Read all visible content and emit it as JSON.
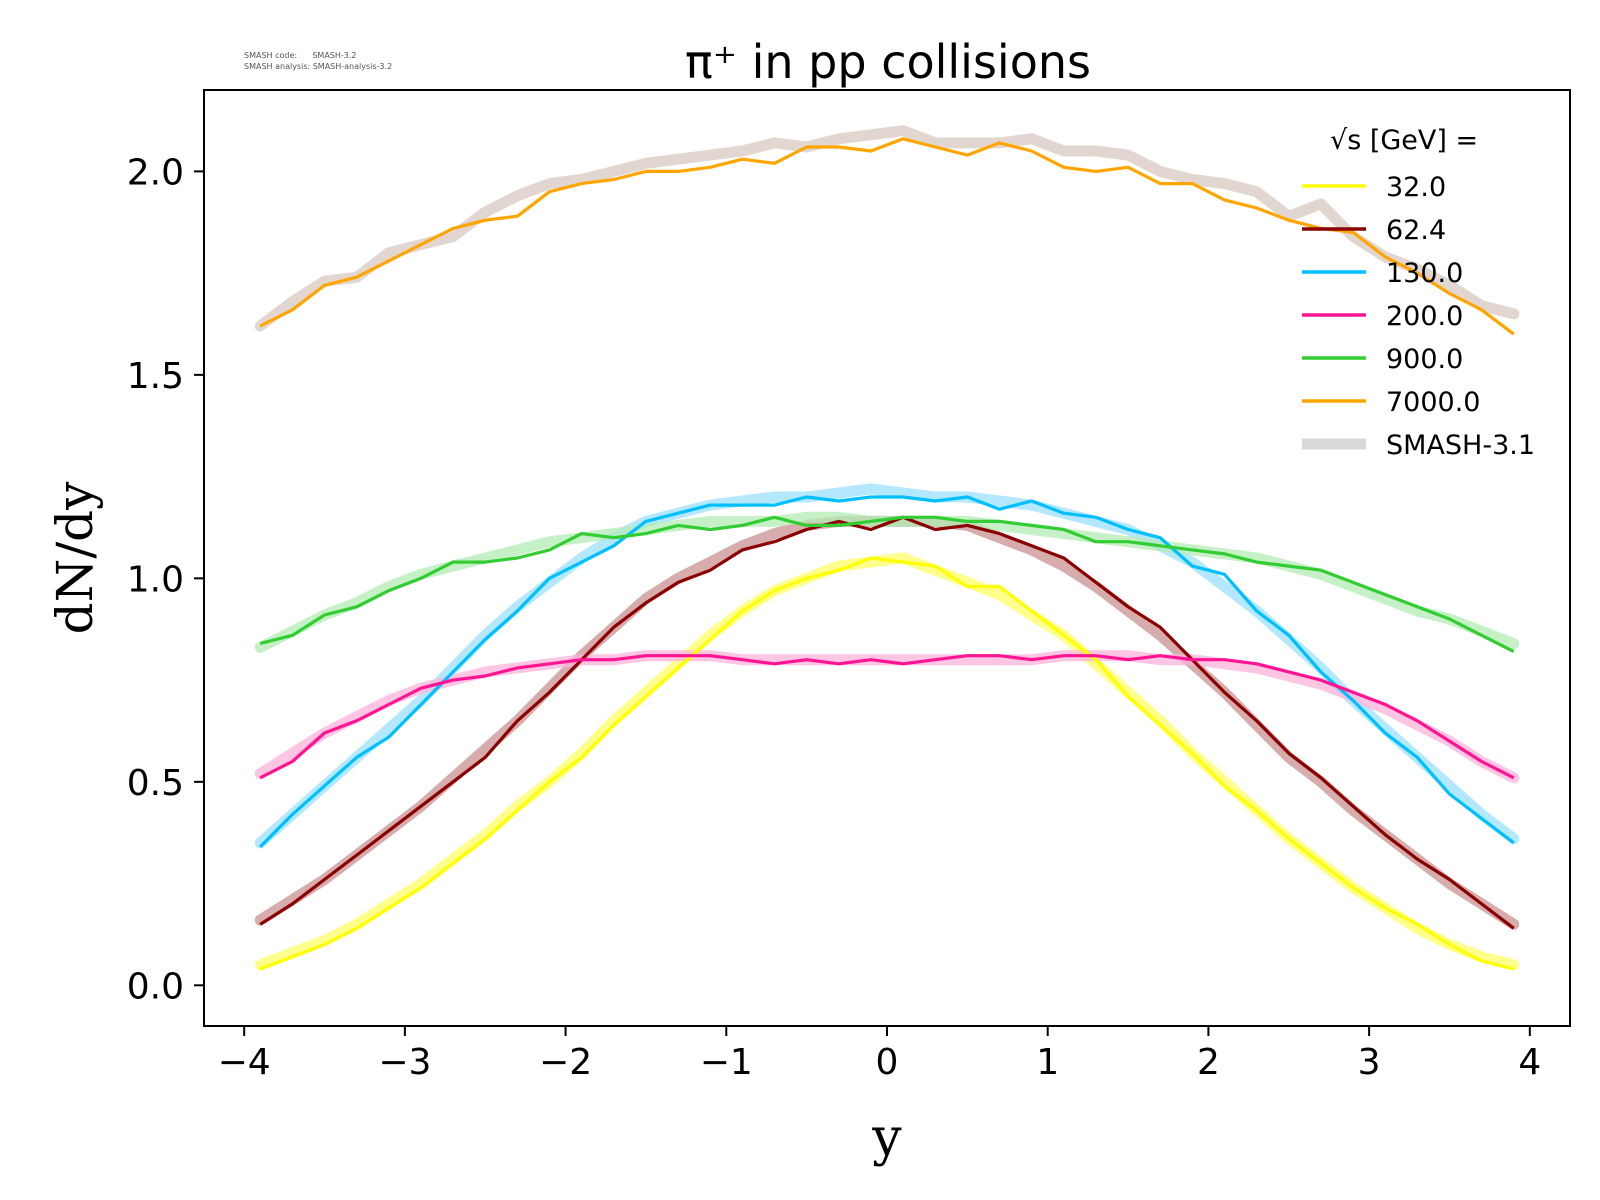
{
  "meta": {
    "line1": "SMASH code:      SMASH-3.2",
    "line2": "SMASH analysis: SMASH-analysis-3.2"
  },
  "chart_data": {
    "type": "line",
    "title": "π⁺ in pp collisions",
    "xlabel": "y",
    "ylabel": "dN/dy",
    "xlim": [
      -4.25,
      4.25
    ],
    "ylim": [
      -0.1,
      2.2
    ],
    "xticks": [
      -4,
      -3,
      -2,
      -1,
      0,
      1,
      2,
      3,
      4
    ],
    "xtick_labels": [
      "−4",
      "−3",
      "−2",
      "−1",
      "0",
      "1",
      "2",
      "3",
      "4"
    ],
    "yticks": [
      0.0,
      0.5,
      1.0,
      1.5,
      2.0
    ],
    "ytick_labels": [
      "0.0",
      "0.5",
      "1.0",
      "1.5",
      "2.0"
    ],
    "grid": false,
    "legend_placement": "top-right",
    "legend_title": "√s  [GeV] =",
    "x": [
      -3.9,
      -3.7,
      -3.5,
      -3.3,
      -3.1,
      -2.9,
      -2.7,
      -2.5,
      -2.3,
      -2.1,
      -1.9,
      -1.7,
      -1.5,
      -1.3,
      -1.1,
      -0.9,
      -0.7,
      -0.5,
      -0.3,
      -0.1,
      0.1,
      0.3,
      0.5,
      0.7,
      0.9,
      1.1,
      1.3,
      1.5,
      1.7,
      1.9,
      2.1,
      2.3,
      2.5,
      2.7,
      2.9,
      3.1,
      3.3,
      3.5,
      3.7,
      3.9
    ],
    "series": [
      {
        "name": "32.0",
        "color": "#ffff00",
        "values": [
          0.04,
          0.07,
          0.1,
          0.14,
          0.19,
          0.24,
          0.3,
          0.36,
          0.43,
          0.5,
          0.56,
          0.64,
          0.71,
          0.78,
          0.85,
          0.92,
          0.97,
          1.0,
          1.02,
          1.05,
          1.04,
          1.03,
          0.98,
          0.98,
          0.92,
          0.86,
          0.8,
          0.71,
          0.64,
          0.57,
          0.49,
          0.43,
          0.36,
          0.3,
          0.24,
          0.19,
          0.15,
          0.1,
          0.06,
          0.04
        ]
      },
      {
        "name": "62.4",
        "color": "#8b0000",
        "values": [
          0.15,
          0.2,
          0.26,
          0.32,
          0.38,
          0.44,
          0.5,
          0.56,
          0.65,
          0.72,
          0.8,
          0.88,
          0.94,
          0.99,
          1.02,
          1.07,
          1.09,
          1.12,
          1.14,
          1.12,
          1.15,
          1.12,
          1.13,
          1.11,
          1.08,
          1.05,
          0.99,
          0.93,
          0.88,
          0.8,
          0.72,
          0.65,
          0.57,
          0.51,
          0.44,
          0.37,
          0.31,
          0.26,
          0.2,
          0.14
        ]
      },
      {
        "name": "130.0",
        "color": "#00bfff",
        "values": [
          0.34,
          0.42,
          0.49,
          0.56,
          0.61,
          0.69,
          0.77,
          0.85,
          0.92,
          1.0,
          1.04,
          1.08,
          1.14,
          1.16,
          1.18,
          1.18,
          1.18,
          1.2,
          1.19,
          1.2,
          1.2,
          1.19,
          1.2,
          1.17,
          1.19,
          1.16,
          1.15,
          1.12,
          1.1,
          1.03,
          1.01,
          0.92,
          0.86,
          0.77,
          0.7,
          0.62,
          0.56,
          0.47,
          0.41,
          0.35
        ]
      },
      {
        "name": "200.0",
        "color": "#ff1493",
        "values": [
          0.51,
          0.55,
          0.62,
          0.65,
          0.69,
          0.73,
          0.75,
          0.76,
          0.78,
          0.79,
          0.8,
          0.8,
          0.81,
          0.81,
          0.81,
          0.8,
          0.79,
          0.8,
          0.79,
          0.8,
          0.79,
          0.8,
          0.81,
          0.81,
          0.8,
          0.81,
          0.81,
          0.8,
          0.81,
          0.8,
          0.8,
          0.79,
          0.77,
          0.75,
          0.72,
          0.69,
          0.65,
          0.6,
          0.55,
          0.51
        ]
      },
      {
        "name": "900.0",
        "color": "#32cd32",
        "values": [
          0.84,
          0.86,
          0.91,
          0.93,
          0.97,
          1.0,
          1.04,
          1.04,
          1.05,
          1.07,
          1.11,
          1.1,
          1.11,
          1.13,
          1.12,
          1.13,
          1.15,
          1.13,
          1.13,
          1.14,
          1.15,
          1.15,
          1.14,
          1.14,
          1.13,
          1.12,
          1.09,
          1.09,
          1.08,
          1.07,
          1.06,
          1.04,
          1.03,
          1.02,
          0.99,
          0.96,
          0.93,
          0.9,
          0.86,
          0.82
        ]
      },
      {
        "name": "7000.0",
        "color": "#ffa500",
        "values": [
          1.62,
          1.66,
          1.72,
          1.74,
          1.78,
          1.82,
          1.86,
          1.88,
          1.89,
          1.95,
          1.97,
          1.98,
          2.0,
          2.0,
          2.01,
          2.03,
          2.02,
          2.06,
          2.06,
          2.05,
          2.08,
          2.06,
          2.04,
          2.07,
          2.05,
          2.01,
          2.0,
          2.01,
          1.97,
          1.97,
          1.93,
          1.91,
          1.88,
          1.86,
          1.85,
          1.79,
          1.75,
          1.7,
          1.66,
          1.6
        ]
      },
      {
        "name": "SMASH-3.1",
        "color": "#d9d9d9"
      }
    ],
    "reference_band": {
      "name": "SMASH-3.1",
      "color": "#d3d3d3",
      "series": [
        {
          "values": [
            0.05,
            0.08,
            0.11,
            0.15,
            0.2,
            0.25,
            0.31,
            0.37,
            0.44,
            0.5,
            0.57,
            0.65,
            0.72,
            0.79,
            0.86,
            0.92,
            0.97,
            1.0,
            1.03,
            1.04,
            1.05,
            1.02,
            0.99,
            0.96,
            0.91,
            0.86,
            0.79,
            0.72,
            0.65,
            0.57,
            0.5,
            0.43,
            0.36,
            0.3,
            0.24,
            0.19,
            0.14,
            0.1,
            0.07,
            0.05
          ],
          "color": "#ffff66"
        },
        {
          "values": [
            0.16,
            0.21,
            0.26,
            0.32,
            0.38,
            0.44,
            0.51,
            0.58,
            0.65,
            0.73,
            0.81,
            0.88,
            0.95,
            1.0,
            1.04,
            1.08,
            1.11,
            1.13,
            1.14,
            1.14,
            1.14,
            1.14,
            1.13,
            1.1,
            1.07,
            1.03,
            0.98,
            0.92,
            0.86,
            0.79,
            0.72,
            0.64,
            0.56,
            0.5,
            0.43,
            0.37,
            0.31,
            0.25,
            0.2,
            0.15
          ],
          "color": "#c89090"
        },
        {
          "values": [
            0.35,
            0.42,
            0.49,
            0.56,
            0.63,
            0.7,
            0.78,
            0.86,
            0.93,
            0.99,
            1.05,
            1.1,
            1.14,
            1.16,
            1.18,
            1.19,
            1.2,
            1.2,
            1.21,
            1.22,
            1.21,
            1.2,
            1.2,
            1.19,
            1.18,
            1.16,
            1.14,
            1.12,
            1.08,
            1.04,
            0.98,
            0.92,
            0.85,
            0.78,
            0.7,
            0.63,
            0.56,
            0.49,
            0.42,
            0.36
          ],
          "color": "#99e0ff"
        },
        {
          "values": [
            0.52,
            0.57,
            0.62,
            0.66,
            0.7,
            0.73,
            0.75,
            0.77,
            0.78,
            0.79,
            0.8,
            0.8,
            0.81,
            0.81,
            0.81,
            0.8,
            0.8,
            0.8,
            0.8,
            0.8,
            0.8,
            0.8,
            0.8,
            0.8,
            0.8,
            0.81,
            0.81,
            0.81,
            0.8,
            0.8,
            0.79,
            0.78,
            0.76,
            0.74,
            0.71,
            0.68,
            0.64,
            0.6,
            0.55,
            0.51
          ],
          "color": "#ffb3d9"
        },
        {
          "values": [
            0.83,
            0.87,
            0.91,
            0.94,
            0.98,
            1.01,
            1.03,
            1.05,
            1.07,
            1.09,
            1.1,
            1.11,
            1.12,
            1.13,
            1.14,
            1.14,
            1.14,
            1.15,
            1.15,
            1.14,
            1.14,
            1.14,
            1.14,
            1.13,
            1.12,
            1.11,
            1.1,
            1.09,
            1.08,
            1.07,
            1.06,
            1.05,
            1.03,
            1.01,
            0.98,
            0.95,
            0.92,
            0.9,
            0.87,
            0.84
          ],
          "color": "#b3ecb3"
        },
        {
          "values": [
            1.62,
            1.68,
            1.73,
            1.74,
            1.8,
            1.82,
            1.84,
            1.9,
            1.94,
            1.97,
            1.98,
            2.0,
            2.02,
            2.03,
            2.04,
            2.05,
            2.07,
            2.06,
            2.08,
            2.09,
            2.1,
            2.07,
            2.07,
            2.07,
            2.08,
            2.05,
            2.05,
            2.04,
            2.0,
            1.98,
            1.97,
            1.95,
            1.89,
            1.92,
            1.84,
            1.79,
            1.76,
            1.72,
            1.67,
            1.65
          ],
          "color": "#d8c8c0"
        }
      ]
    }
  }
}
